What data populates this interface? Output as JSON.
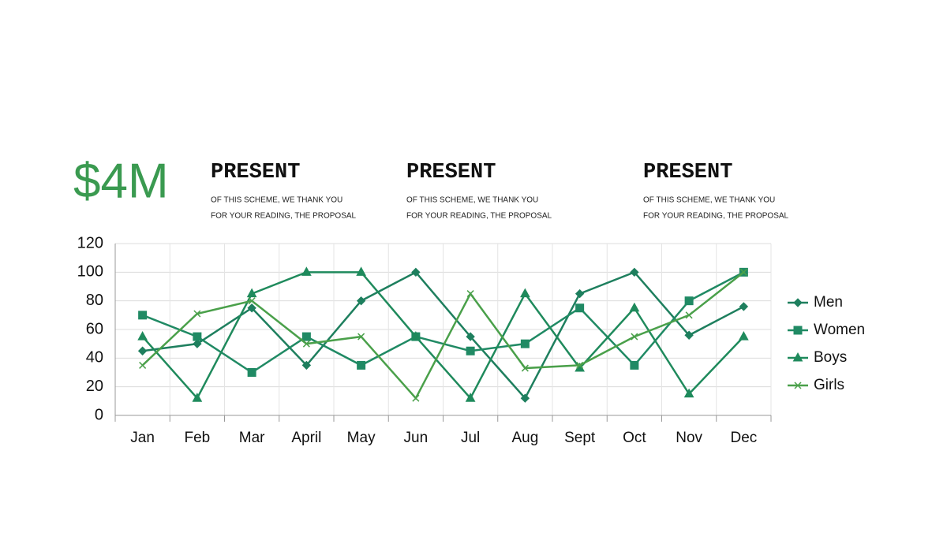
{
  "headline": "$4M",
  "blocks": [
    {
      "heading": "PRESENT",
      "lines": [
        "OF THIS SCHEME, WE THANK YOU",
        "FOR YOUR READING, THE PROPOSAL"
      ]
    },
    {
      "heading": "PRESENT",
      "lines": [
        "OF THIS SCHEME, WE THANK YOU",
        "FOR YOUR READING, THE PROPOSAL"
      ]
    },
    {
      "heading": "PRESENT",
      "lines": [
        "OF THIS SCHEME, WE THANK YOU",
        "FOR YOUR READING, THE PROPOSAL"
      ]
    }
  ],
  "chart_data": {
    "type": "line",
    "categories": [
      "Jan",
      "Feb",
      "Mar",
      "April",
      "May",
      "Jun",
      "Jul",
      "Aug",
      "Sept",
      "Oct",
      "Nov",
      "Dec"
    ],
    "series": [
      {
        "name": "Men",
        "color": "#1e7f5e",
        "marker": "diamond",
        "values": [
          45,
          50,
          75,
          35,
          80,
          100,
          55,
          12,
          85,
          100,
          56,
          76
        ]
      },
      {
        "name": "Women",
        "color": "#208a64",
        "marker": "square",
        "values": [
          70,
          55,
          30,
          55,
          35,
          55,
          45,
          50,
          75,
          35,
          80,
          100
        ]
      },
      {
        "name": "Boys",
        "color": "#1f8a5c",
        "marker": "triangle",
        "values": [
          55,
          12,
          85,
          100,
          100,
          55,
          12,
          85,
          33,
          75,
          15,
          55
        ]
      },
      {
        "name": "Girls",
        "color": "#4aa04a",
        "marker": "x",
        "values": [
          35,
          71,
          80,
          50,
          55,
          12,
          85,
          33,
          35,
          55,
          70,
          100
        ]
      }
    ],
    "ylim": [
      0,
      120
    ],
    "yticks": [
      0,
      20,
      40,
      60,
      80,
      100,
      120
    ],
    "grid": true,
    "legend": "right"
  }
}
